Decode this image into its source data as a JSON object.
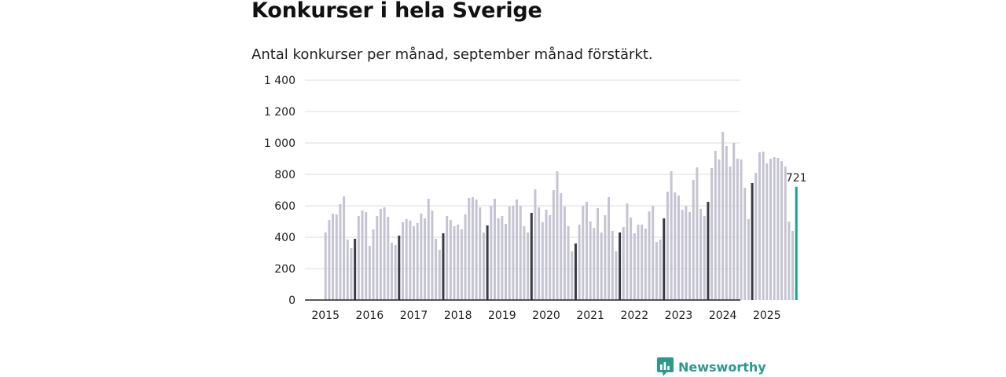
{
  "page": {
    "title": "Konkurser i hela Sverige",
    "subtitle": "Antal konkurser per månad, september månad förstärkt."
  },
  "brand": {
    "name": "Newsworthy",
    "icon": "newsworthy-logo-icon",
    "color": "#2b9a8d"
  },
  "colors": {
    "bar": "#c5c4d2",
    "highlight": "#3a3a44",
    "latest": "#1ba08e",
    "grid": "#dcdcdc",
    "axis": "#222222"
  },
  "chart_data": {
    "type": "bar",
    "title": "Konkurser i hela Sverige",
    "subtitle": "Antal konkurser per månad, september månad förstärkt.",
    "xlabel": "",
    "ylabel": "",
    "ylim": [
      0,
      1400
    ],
    "yticks": [
      0,
      200,
      400,
      600,
      800,
      1000,
      1200,
      1400
    ],
    "ytick_labels": [
      "0",
      "200",
      "400",
      "600",
      "800",
      "1 000",
      "1 200",
      "1 400"
    ],
    "xtick_labels": [
      "2015",
      "2016",
      "2017",
      "2018",
      "2019",
      "2020",
      "2021",
      "2022",
      "2023",
      "2024",
      "2025"
    ],
    "grid": true,
    "start": "2015-01",
    "highlight_month": 9,
    "latest_label": "721",
    "series": [
      {
        "name": "Antal konkurser",
        "values": [
          [
            430,
            510,
            550,
            545,
            610,
            660,
            385,
            330,
            390,
            535,
            570,
            560
          ],
          [
            345,
            450,
            535,
            580,
            590,
            530,
            365,
            350,
            410,
            495,
            515,
            505
          ],
          [
            470,
            490,
            550,
            520,
            645,
            570,
            390,
            320,
            425,
            535,
            510,
            470
          ],
          [
            480,
            450,
            545,
            650,
            655,
            640,
            590,
            430,
            475,
            600,
            645,
            520
          ],
          [
            535,
            485,
            595,
            600,
            640,
            600,
            470,
            430,
            555,
            705,
            590,
            495
          ],
          [
            575,
            540,
            700,
            820,
            680,
            595,
            470,
            310,
            360,
            480,
            600,
            625
          ],
          [
            500,
            460,
            585,
            430,
            540,
            655,
            440,
            310,
            430,
            465,
            615,
            525
          ],
          [
            425,
            480,
            480,
            455,
            565,
            600,
            370,
            385,
            520,
            690,
            820,
            685
          ],
          [
            665,
            575,
            600,
            560,
            765,
            845,
            580,
            535,
            625,
            840,
            950,
            895
          ],
          [
            1070,
            980,
            850,
            1000,
            900,
            895,
            715,
            515,
            745,
            810,
            940,
            945
          ],
          [
            870,
            900,
            910,
            905,
            885,
            850,
            500,
            440,
            721
          ]
        ]
      }
    ]
  }
}
